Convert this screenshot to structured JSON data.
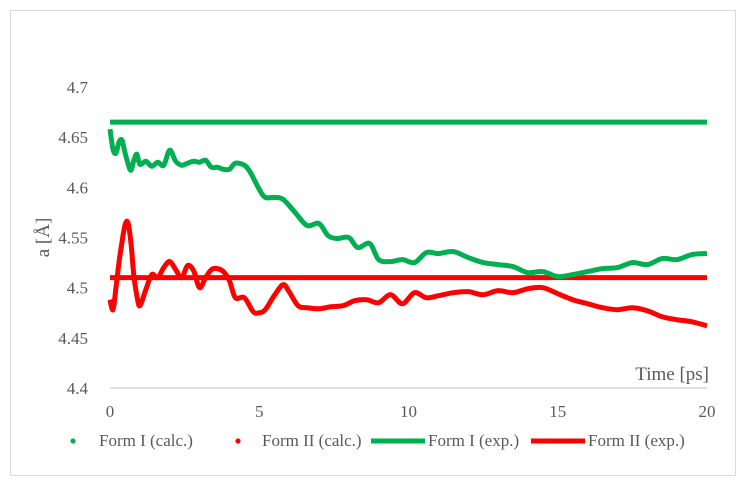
{
  "chart_data": {
    "type": "line",
    "title": "",
    "xlabel": "Time [ps]",
    "ylabel": "a [Å]",
    "xlim": [
      0,
      20
    ],
    "ylim": [
      4.4,
      4.7
    ],
    "x_ticks": [
      "0",
      "5",
      "10",
      "15",
      "20"
    ],
    "y_ticks": [
      "4.4",
      "4.45",
      "4.5",
      "4.55",
      "4.6",
      "4.65",
      "4.7"
    ],
    "legend_position": "bottom",
    "grid": false,
    "series": [
      {
        "name": "Form I (calc.)",
        "kind": "calc",
        "color": "#00b050",
        "x": [
          0,
          0.1,
          0.2,
          0.3,
          0.4,
          0.5,
          0.6,
          0.7,
          0.8,
          0.9,
          1.0,
          1.2,
          1.4,
          1.6,
          1.8,
          2.0,
          2.2,
          2.4,
          2.6,
          2.8,
          3.0,
          3.2,
          3.4,
          3.6,
          3.8,
          4.0,
          4.2,
          4.5,
          4.7,
          5.0,
          5.2,
          5.5,
          5.8,
          6.2,
          6.6,
          7.0,
          7.3,
          7.6,
          8.0,
          8.3,
          8.7,
          9.0,
          9.4,
          9.8,
          10.2,
          10.6,
          11.0,
          11.5,
          12.0,
          12.5,
          13.0,
          13.5,
          14.0,
          14.5,
          15.0,
          15.5,
          16.0,
          16.5,
          17.0,
          17.5,
          18.0,
          18.5,
          19.0,
          19.5,
          20.0
        ],
        "values": [
          4.658,
          4.638,
          4.634,
          4.645,
          4.647,
          4.635,
          4.624,
          4.617,
          4.627,
          4.633,
          4.623,
          4.626,
          4.621,
          4.625,
          4.622,
          4.637,
          4.626,
          4.622,
          4.624,
          4.626,
          4.625,
          4.627,
          4.62,
          4.62,
          4.618,
          4.618,
          4.624,
          4.622,
          4.615,
          4.598,
          4.59,
          4.59,
          4.588,
          4.575,
          4.562,
          4.564,
          4.552,
          4.549,
          4.55,
          4.54,
          4.544,
          4.528,
          4.526,
          4.528,
          4.525,
          4.535,
          4.534,
          4.536,
          4.53,
          4.525,
          4.523,
          4.521,
          4.515,
          4.516,
          4.511,
          4.513,
          4.516,
          4.519,
          4.52,
          4.525,
          4.523,
          4.529,
          4.528,
          4.533,
          4.534
        ]
      },
      {
        "name": "Form II (calc.)",
        "kind": "calc",
        "color": "#ff0000",
        "x": [
          0,
          0.1,
          0.2,
          0.3,
          0.4,
          0.5,
          0.6,
          0.7,
          0.8,
          0.9,
          1.0,
          1.2,
          1.4,
          1.6,
          1.8,
          2.0,
          2.2,
          2.4,
          2.6,
          2.8,
          3.0,
          3.2,
          3.4,
          3.6,
          3.8,
          4.0,
          4.2,
          4.5,
          4.8,
          5.0,
          5.2,
          5.5,
          5.8,
          6.0,
          6.3,
          6.6,
          7.0,
          7.4,
          7.8,
          8.2,
          8.6,
          9.0,
          9.4,
          9.8,
          10.2,
          10.6,
          11.0,
          11.5,
          12.0,
          12.5,
          13.0,
          13.5,
          14.0,
          14.5,
          15.0,
          15.5,
          16.0,
          16.5,
          17.0,
          17.5,
          18.0,
          18.5,
          19.0,
          19.5,
          20.0
        ],
        "values": [
          4.488,
          4.478,
          4.5,
          4.525,
          4.545,
          4.562,
          4.565,
          4.545,
          4.512,
          4.492,
          4.482,
          4.498,
          4.513,
          4.51,
          4.52,
          4.526,
          4.518,
          4.51,
          4.522,
          4.517,
          4.5,
          4.51,
          4.518,
          4.519,
          4.516,
          4.507,
          4.49,
          4.49,
          4.476,
          4.475,
          4.478,
          4.492,
          4.503,
          4.496,
          4.482,
          4.48,
          4.479,
          4.481,
          4.482,
          4.487,
          4.488,
          4.485,
          4.493,
          4.484,
          4.495,
          4.49,
          4.492,
          4.495,
          4.496,
          4.493,
          4.497,
          4.495,
          4.499,
          4.5,
          4.494,
          4.488,
          4.484,
          4.48,
          4.478,
          4.48,
          4.477,
          4.471,
          4.468,
          4.466,
          4.462
        ]
      },
      {
        "name": "Form I (exp.)",
        "kind": "exp",
        "color": "#00b050",
        "x": [
          0,
          20
        ],
        "values": [
          4.665,
          4.665
        ]
      },
      {
        "name": "Form II (exp.)",
        "kind": "exp",
        "color": "#ff0000",
        "x": [
          0,
          20
        ],
        "values": [
          4.51,
          4.51
        ]
      }
    ]
  },
  "colors": {
    "axis": "#bfbfbf",
    "text": "#595959",
    "border": "#d9d9d9"
  }
}
